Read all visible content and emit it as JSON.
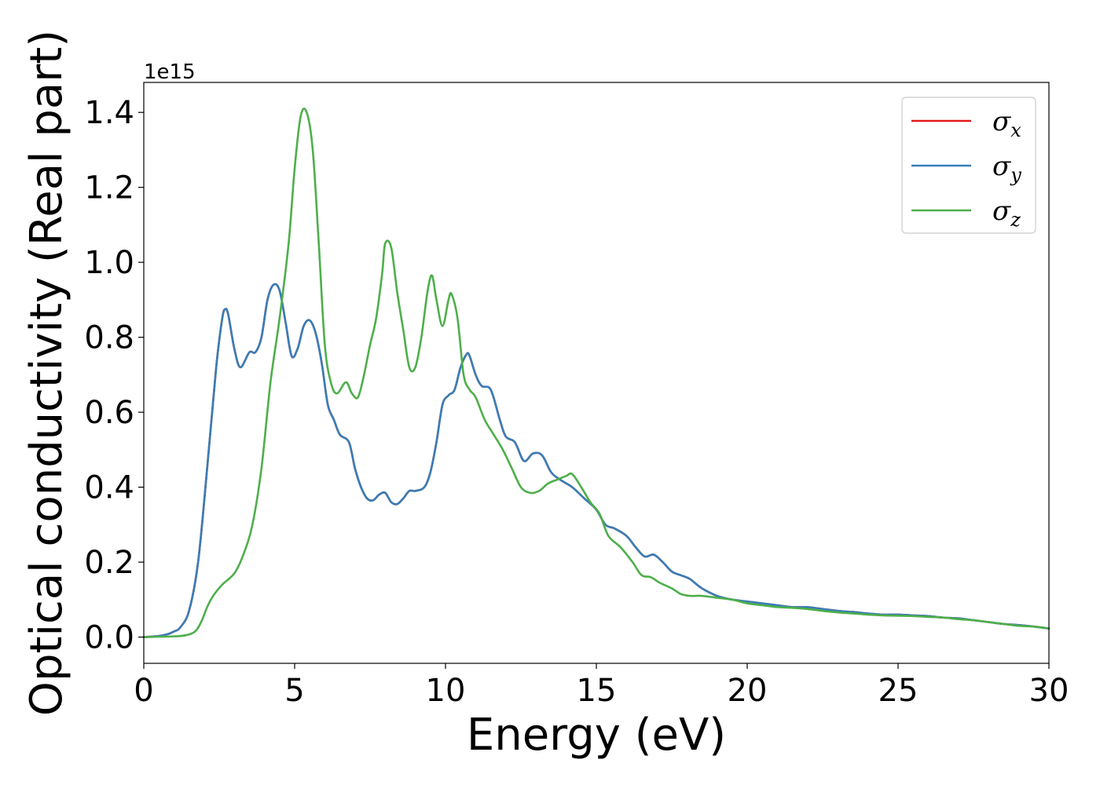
{
  "chart_data": {
    "type": "line",
    "xlabel": "Energy (eV)",
    "ylabel": "Optical conductivity (Real part)",
    "y_offset_text": "1e15",
    "xlim": [
      0,
      30
    ],
    "ylim": [
      -0.07,
      1.48
    ],
    "x_ticks": [
      0,
      5,
      10,
      15,
      20,
      25,
      30
    ],
    "x_tick_labels": [
      "0",
      "5",
      "10",
      "15",
      "20",
      "25",
      "30"
    ],
    "y_ticks": [
      0.0,
      0.2,
      0.4,
      0.6,
      0.8,
      1.0,
      1.2,
      1.4
    ],
    "y_tick_labels": [
      "0.0",
      "0.2",
      "0.4",
      "0.6",
      "0.8",
      "1.0",
      "1.2",
      "1.4"
    ],
    "grid": false,
    "legend_position": "top-right",
    "series": [
      {
        "name": "σx",
        "color": "#e41a1c",
        "x": [
          0,
          0.5,
          0.8,
          1.0,
          1.2,
          1.5,
          1.8,
          2.1,
          2.4,
          2.6,
          2.7,
          2.8,
          3.0,
          3.2,
          3.5,
          3.7,
          3.9,
          4.1,
          4.3,
          4.5,
          4.7,
          4.9,
          5.1,
          5.3,
          5.5,
          5.7,
          5.9,
          6.1,
          6.3,
          6.5,
          6.8,
          7.0,
          7.2,
          7.4,
          7.6,
          7.8,
          8.0,
          8.2,
          8.4,
          8.6,
          8.8,
          9.0,
          9.3,
          9.5,
          9.7,
          9.9,
          10.1,
          10.3,
          10.5,
          10.7,
          10.8,
          11.0,
          11.2,
          11.5,
          11.8,
          12.0,
          12.3,
          12.6,
          12.9,
          13.2,
          13.5,
          13.8,
          14.2,
          14.6,
          15.0,
          15.3,
          15.6,
          16.0,
          16.3,
          16.6,
          16.9,
          17.2,
          17.5,
          17.8,
          18.1,
          18.5,
          19.0,
          19.5,
          20.0,
          20.5,
          21.0,
          21.5,
          22.0,
          22.5,
          23.0,
          23.5,
          24.0,
          24.5,
          25.0,
          25.5,
          26.0,
          26.5,
          27.0,
          27.5,
          28.0,
          28.5,
          29.0,
          29.5,
          30.0
        ],
        "values": [
          0.0,
          0.003,
          0.008,
          0.015,
          0.025,
          0.07,
          0.2,
          0.45,
          0.72,
          0.85,
          0.875,
          0.86,
          0.77,
          0.72,
          0.76,
          0.76,
          0.8,
          0.9,
          0.94,
          0.925,
          0.84,
          0.75,
          0.77,
          0.83,
          0.845,
          0.81,
          0.73,
          0.62,
          0.58,
          0.54,
          0.52,
          0.45,
          0.4,
          0.37,
          0.365,
          0.38,
          0.385,
          0.36,
          0.355,
          0.37,
          0.39,
          0.39,
          0.4,
          0.44,
          0.52,
          0.62,
          0.645,
          0.66,
          0.72,
          0.755,
          0.75,
          0.7,
          0.67,
          0.66,
          0.58,
          0.535,
          0.52,
          0.47,
          0.49,
          0.485,
          0.44,
          0.42,
          0.4,
          0.37,
          0.34,
          0.3,
          0.29,
          0.27,
          0.24,
          0.215,
          0.22,
          0.2,
          0.175,
          0.165,
          0.155,
          0.13,
          0.11,
          0.1,
          0.095,
          0.09,
          0.085,
          0.08,
          0.08,
          0.075,
          0.07,
          0.067,
          0.063,
          0.06,
          0.06,
          0.058,
          0.056,
          0.052,
          0.05,
          0.045,
          0.04,
          0.035,
          0.032,
          0.028,
          0.023
        ]
      },
      {
        "name": "σy",
        "color": "#377eb8",
        "x": [
          0,
          0.5,
          0.8,
          1.0,
          1.2,
          1.5,
          1.8,
          2.1,
          2.4,
          2.6,
          2.7,
          2.8,
          3.0,
          3.2,
          3.5,
          3.7,
          3.9,
          4.1,
          4.3,
          4.5,
          4.7,
          4.9,
          5.1,
          5.3,
          5.5,
          5.7,
          5.9,
          6.1,
          6.3,
          6.5,
          6.8,
          7.0,
          7.2,
          7.4,
          7.6,
          7.8,
          8.0,
          8.2,
          8.4,
          8.6,
          8.8,
          9.0,
          9.3,
          9.5,
          9.7,
          9.9,
          10.1,
          10.3,
          10.5,
          10.7,
          10.8,
          11.0,
          11.2,
          11.5,
          11.8,
          12.0,
          12.3,
          12.6,
          12.9,
          13.2,
          13.5,
          13.8,
          14.2,
          14.6,
          15.0,
          15.3,
          15.6,
          16.0,
          16.3,
          16.6,
          16.9,
          17.2,
          17.5,
          17.8,
          18.1,
          18.5,
          19.0,
          19.5,
          20.0,
          20.5,
          21.0,
          21.5,
          22.0,
          22.5,
          23.0,
          23.5,
          24.0,
          24.5,
          25.0,
          25.5,
          26.0,
          26.5,
          27.0,
          27.5,
          28.0,
          28.5,
          29.0,
          29.5,
          30.0
        ],
        "values": [
          0.0,
          0.003,
          0.008,
          0.015,
          0.025,
          0.07,
          0.2,
          0.45,
          0.72,
          0.85,
          0.875,
          0.86,
          0.77,
          0.72,
          0.76,
          0.76,
          0.8,
          0.9,
          0.94,
          0.925,
          0.84,
          0.75,
          0.77,
          0.83,
          0.845,
          0.81,
          0.73,
          0.62,
          0.58,
          0.54,
          0.52,
          0.45,
          0.4,
          0.37,
          0.365,
          0.38,
          0.385,
          0.36,
          0.355,
          0.37,
          0.39,
          0.39,
          0.4,
          0.44,
          0.52,
          0.62,
          0.645,
          0.66,
          0.72,
          0.755,
          0.75,
          0.7,
          0.67,
          0.66,
          0.58,
          0.535,
          0.52,
          0.47,
          0.49,
          0.485,
          0.44,
          0.42,
          0.4,
          0.37,
          0.34,
          0.3,
          0.29,
          0.27,
          0.24,
          0.215,
          0.22,
          0.2,
          0.175,
          0.165,
          0.155,
          0.13,
          0.11,
          0.1,
          0.095,
          0.09,
          0.085,
          0.08,
          0.08,
          0.075,
          0.07,
          0.067,
          0.063,
          0.06,
          0.06,
          0.058,
          0.056,
          0.052,
          0.05,
          0.045,
          0.04,
          0.035,
          0.032,
          0.028,
          0.023
        ]
      },
      {
        "name": "σz",
        "color": "#4daf4a",
        "x": [
          0,
          1.0,
          1.4,
          1.7,
          1.9,
          2.1,
          2.3,
          2.6,
          3.0,
          3.3,
          3.6,
          3.9,
          4.2,
          4.5,
          4.8,
          5.0,
          5.2,
          5.4,
          5.6,
          5.8,
          6.0,
          6.2,
          6.4,
          6.7,
          6.9,
          7.1,
          7.3,
          7.5,
          7.7,
          7.9,
          8.0,
          8.2,
          8.4,
          8.6,
          8.8,
          9.0,
          9.2,
          9.4,
          9.55,
          9.7,
          9.9,
          10.1,
          10.2,
          10.4,
          10.6,
          10.8,
          11.0,
          11.3,
          11.6,
          11.9,
          12.2,
          12.5,
          12.8,
          13.1,
          13.4,
          13.7,
          14.0,
          14.2,
          14.5,
          14.8,
          15.1,
          15.4,
          15.8,
          16.2,
          16.5,
          16.8,
          17.1,
          17.5,
          17.8,
          18.1,
          18.5,
          19.0,
          19.5,
          20.0,
          20.5,
          21.0,
          21.5,
          22.0,
          22.5,
          23.0,
          23.5,
          24.0,
          24.5,
          25.0,
          25.5,
          26.0,
          26.5,
          27.0,
          27.5,
          28.0,
          28.5,
          29.0,
          29.5,
          30.0
        ],
        "values": [
          0.0,
          0.002,
          0.005,
          0.015,
          0.04,
          0.08,
          0.11,
          0.14,
          0.17,
          0.22,
          0.3,
          0.45,
          0.68,
          0.85,
          1.05,
          1.25,
          1.39,
          1.4,
          1.3,
          1.05,
          0.78,
          0.68,
          0.65,
          0.68,
          0.65,
          0.64,
          0.7,
          0.78,
          0.85,
          0.97,
          1.05,
          1.04,
          0.92,
          0.82,
          0.72,
          0.72,
          0.8,
          0.92,
          0.965,
          0.9,
          0.83,
          0.9,
          0.915,
          0.85,
          0.7,
          0.66,
          0.64,
          0.58,
          0.54,
          0.5,
          0.45,
          0.4,
          0.385,
          0.39,
          0.41,
          0.42,
          0.43,
          0.435,
          0.4,
          0.36,
          0.33,
          0.27,
          0.24,
          0.2,
          0.165,
          0.16,
          0.145,
          0.13,
          0.115,
          0.11,
          0.11,
          0.105,
          0.1,
          0.09,
          0.085,
          0.08,
          0.078,
          0.075,
          0.07,
          0.066,
          0.063,
          0.06,
          0.058,
          0.057,
          0.056,
          0.054,
          0.052,
          0.048,
          0.045,
          0.04,
          0.035,
          0.03,
          0.028,
          0.023
        ]
      }
    ]
  }
}
